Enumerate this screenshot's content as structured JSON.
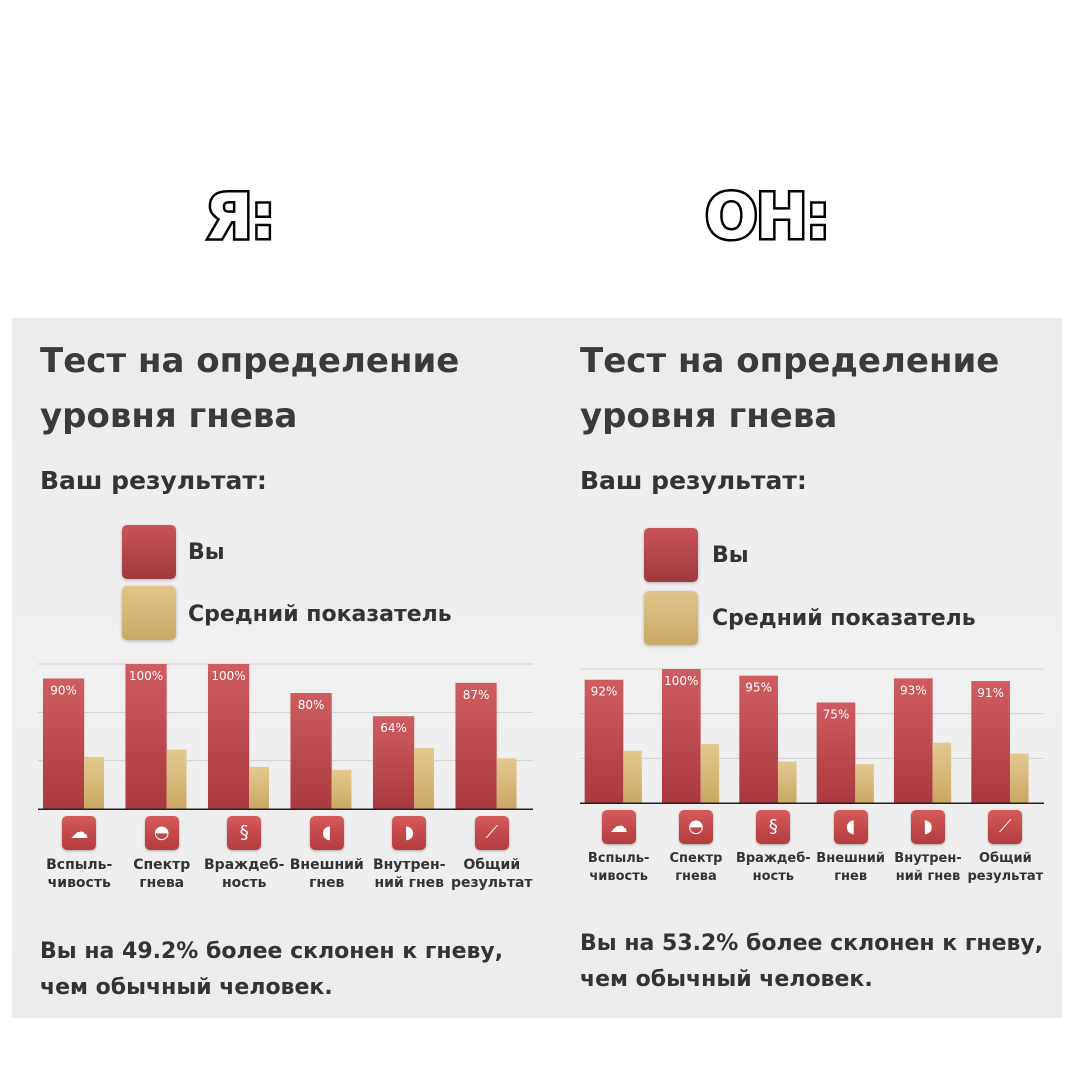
{
  "headers": {
    "left": "Я:",
    "right": "ОН:"
  },
  "panels": [
    {
      "title": "Тест на определение уровня гнева",
      "subtitle": "Ваш результат:",
      "legend": {
        "you": "Вы",
        "average": "Средний показатель"
      },
      "conclusion": "Вы на 49.2% более склонен к гневу, чем обычный человек."
    },
    {
      "title": "Тест на определение уровня гнева",
      "subtitle": "Ваш результат:",
      "legend": {
        "you": "Вы",
        "average": "Средний показатель"
      },
      "conclusion": "Вы на 53.2% более склонен к гневу, чем обычный человек."
    }
  ],
  "categories": [
    [
      "Вспыль-",
      "чивость"
    ],
    [
      "Спектр",
      "гнева"
    ],
    [
      "Враждеб-",
      "ность"
    ],
    [
      "Внешний",
      "гнев"
    ],
    [
      "Внутрен-",
      "ний гнев"
    ],
    [
      "Общий",
      "результат"
    ]
  ],
  "icons": [
    "storm-icon",
    "gauge-icon",
    "dragon-icon",
    "head-outward-icon",
    "head-inward-icon",
    "chart-line-icon"
  ],
  "colors": {
    "you": "#b8464b",
    "average": "#d8b878"
  },
  "chart_data": [
    {
      "type": "bar",
      "categories": [
        "Вспыль-чивость",
        "Спектр гнева",
        "Враждеб-ность",
        "Внешний гнев",
        "Внутрен-ний гнев",
        "Общий результат"
      ],
      "series": [
        {
          "name": "Вы",
          "values": [
            90,
            100,
            100,
            80,
            64,
            87
          ]
        },
        {
          "name": "Средний показатель",
          "values": [
            36,
            41,
            29,
            27,
            42,
            35
          ]
        }
      ],
      "data_labels": [
        "90%",
        "100%",
        "100%",
        "80%",
        "64%",
        "87%"
      ],
      "ylim": [
        0,
        100
      ]
    },
    {
      "type": "bar",
      "categories": [
        "Вспыль-чивость",
        "Спектр гнева",
        "Враждеб-ность",
        "Внешний гнев",
        "Внутрен-ний гнев",
        "Общий результат"
      ],
      "series": [
        {
          "name": "Вы",
          "values": [
            92,
            100,
            95,
            75,
            93,
            91
          ]
        },
        {
          "name": "Средний показатель",
          "values": [
            39,
            44,
            31,
            29,
            45,
            37
          ]
        }
      ],
      "data_labels": [
        "92%",
        "100%",
        "95%",
        "75%",
        "93%",
        "91%"
      ],
      "ylim": [
        0,
        100
      ]
    }
  ]
}
